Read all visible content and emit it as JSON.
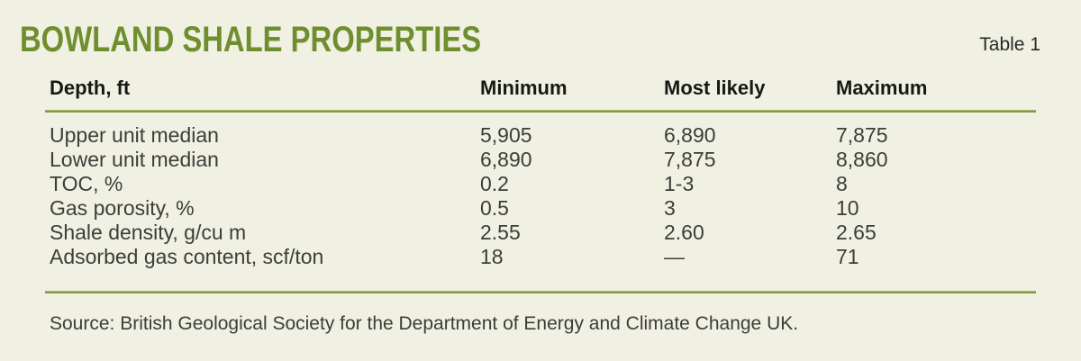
{
  "colors": {
    "background": "#f0f1e3",
    "title_green": "#6f8f2f",
    "rule_green": "#879a45",
    "text_dark": "#3d3d39"
  },
  "header": {
    "title": "BOWLAND SHALE PROPERTIES",
    "table_label": "Table 1"
  },
  "table": {
    "columns": [
      "Depth, ft",
      "Minimum",
      "Most likely",
      "Maximum"
    ],
    "rows": [
      {
        "label": "Upper unit median",
        "minimum": "5,905",
        "most_likely": "6,890",
        "maximum": "7,875"
      },
      {
        "label": "Lower unit median",
        "minimum": "6,890",
        "most_likely": "7,875",
        "maximum": "8,860"
      },
      {
        "label": "TOC, %",
        "minimum": "0.2",
        "most_likely": "1-3",
        "maximum": "8"
      },
      {
        "label": "Gas porosity, %",
        "minimum": "0.5",
        "most_likely": "3",
        "maximum": "10"
      },
      {
        "label": "Shale density, g/cu m",
        "minimum": "2.55",
        "most_likely": "2.60",
        "maximum": "2.65"
      },
      {
        "label": "Adsorbed gas content, scf/ton",
        "minimum": "18",
        "most_likely": "—",
        "maximum": "71"
      }
    ]
  },
  "source": "Source: British Geological Society for the Department of Energy and Climate Change UK.",
  "chart_data": {
    "type": "table",
    "title": "BOWLAND SHALE PROPERTIES",
    "caption": "Table 1",
    "columns": [
      "Depth, ft",
      "Minimum",
      "Most likely",
      "Maximum"
    ],
    "rows": [
      [
        "Upper unit median",
        "5,905",
        "6,890",
        "7,875"
      ],
      [
        "Lower unit median",
        "6,890",
        "7,875",
        "8,860"
      ],
      [
        "TOC, %",
        "0.2",
        "1-3",
        "8"
      ],
      [
        "Gas porosity, %",
        "0.5",
        "3",
        "10"
      ],
      [
        "Shale density, g/cu m",
        "2.55",
        "2.60",
        "2.65"
      ],
      [
        "Adsorbed gas content, scf/ton",
        "18",
        "—",
        "71"
      ]
    ],
    "source_note": "Source: British Geological Society for the Department of Energy and Climate Change UK."
  }
}
